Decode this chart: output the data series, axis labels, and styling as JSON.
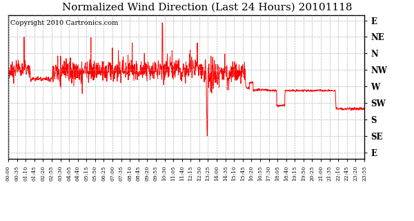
{
  "title": "Normalized Wind Direction (Last 24 Hours) 20101118",
  "copyright": "Copyright 2010 Cartronics.com",
  "line_color": "#ff0000",
  "bg_color": "#ffffff",
  "grid_color": "#aaaaaa",
  "ytick_labels": [
    "E",
    "NE",
    "N",
    "NW",
    "W",
    "SW",
    "S",
    "SE",
    "E"
  ],
  "ytick_values": [
    0,
    1,
    2,
    3,
    4,
    5,
    6,
    7,
    8
  ],
  "xtick_labels": [
    "00:00",
    "00:35",
    "01:10",
    "01:45",
    "02:20",
    "02:55",
    "03:30",
    "04:05",
    "04:40",
    "05:15",
    "05:50",
    "06:25",
    "07:00",
    "07:35",
    "08:10",
    "08:45",
    "09:20",
    "09:55",
    "10:30",
    "11:05",
    "11:40",
    "12:15",
    "12:50",
    "13:25",
    "14:00",
    "14:35",
    "15:10",
    "15:45",
    "16:20",
    "16:55",
    "17:30",
    "18:05",
    "18:40",
    "19:15",
    "19:50",
    "20:25",
    "21:00",
    "21:35",
    "22:10",
    "22:45",
    "23:20",
    "23:55"
  ],
  "title_fontsize": 11,
  "copyright_fontsize": 7
}
